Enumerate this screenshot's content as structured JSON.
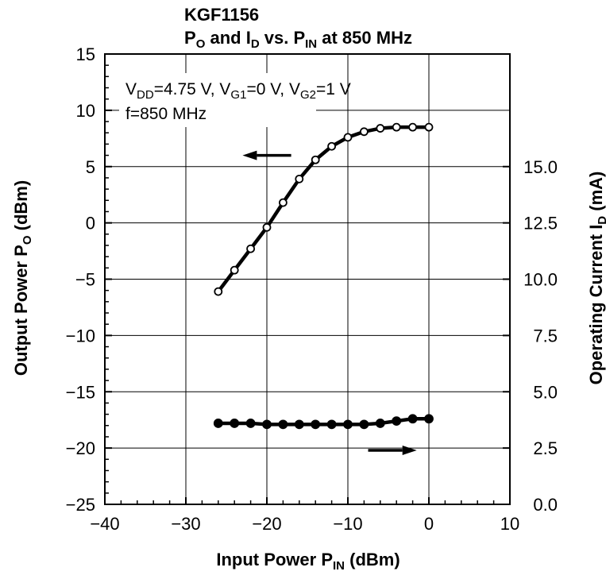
{
  "chart_data": {
    "type": "line",
    "title": "KGF1156",
    "subtitle": {
      "p": "P",
      "p_sub": "O",
      "mid": " and I",
      "i_sub": "D",
      "vs": " vs. P",
      "pin_sub": "IN",
      "tail": " at 850 MHz"
    },
    "conditions": {
      "line1": [
        {
          "t": "V"
        },
        {
          "t": "DD",
          "sub": true
        },
        {
          "t": "=4.75 V, V"
        },
        {
          "t": "G1",
          "sub": true
        },
        {
          "t": "=0 V, V"
        },
        {
          "t": "G2",
          "sub": true
        },
        {
          "t": "=1 V"
        }
      ],
      "line2": "f=850 MHz"
    },
    "xlabel": {
      "main": "Input Power  P",
      "sub": "IN",
      "unit": "  (dBm)"
    },
    "ylabel_left": {
      "main": "Output Power  P",
      "sub": "O",
      "unit": "  (dBm)"
    },
    "ylabel_right": {
      "main": "Operating Current  I",
      "sub": "D",
      "unit": "  (mA)"
    },
    "xlim": [
      -40,
      10
    ],
    "ylim_left": [
      -25,
      15
    ],
    "ylim_right": [
      0,
      20
    ],
    "x_ticks": [
      "−40",
      "−30",
      "−20",
      "−10",
      "0",
      "10"
    ],
    "x_tick_values": [
      -40,
      -30,
      -20,
      -10,
      0,
      10
    ],
    "y_left_ticks": [
      "15",
      "10",
      "5",
      "0",
      "−5",
      "−10",
      "−15",
      "−20",
      "−25"
    ],
    "y_left_tick_values": [
      15,
      10,
      5,
      0,
      -5,
      -10,
      -15,
      -20,
      -25
    ],
    "y_right_ticks": [
      "15.0",
      "12.5",
      "10.0",
      "7.5",
      "5.0",
      "2.5",
      "0.0"
    ],
    "y_right_tick_values": [
      15.0,
      12.5,
      10.0,
      7.5,
      5.0,
      2.5,
      0.0
    ],
    "grid": true,
    "series": [
      {
        "axis": "left",
        "marker": "open-circle",
        "x": [
          -26,
          -24,
          -22,
          -20,
          -18,
          -16,
          -14,
          -12,
          -10,
          -8,
          -6,
          -4,
          -2,
          0
        ],
        "y": [
          -6.1,
          -4.2,
          -2.3,
          -0.4,
          1.8,
          3.9,
          5.6,
          6.8,
          7.6,
          8.1,
          8.4,
          8.5,
          8.5,
          8.5
        ]
      },
      {
        "axis": "right",
        "marker": "filled-circle",
        "x": [
          -26,
          -24,
          -22,
          -20,
          -18,
          -16,
          -14,
          -12,
          -10,
          -8,
          -6,
          -4,
          -2,
          0
        ],
        "y": [
          3.6,
          3.6,
          3.6,
          3.55,
          3.55,
          3.55,
          3.55,
          3.55,
          3.55,
          3.55,
          3.6,
          3.7,
          3.8,
          3.8
        ]
      }
    ],
    "arrows": [
      {
        "series": 0,
        "direction": "left",
        "from": [
          -17,
          6
        ],
        "to": [
          -23,
          6
        ]
      },
      {
        "series": 1,
        "direction": "right",
        "from": [
          -7.5,
          -20.2
        ],
        "to": [
          -1.5,
          -20.2
        ]
      }
    ]
  }
}
